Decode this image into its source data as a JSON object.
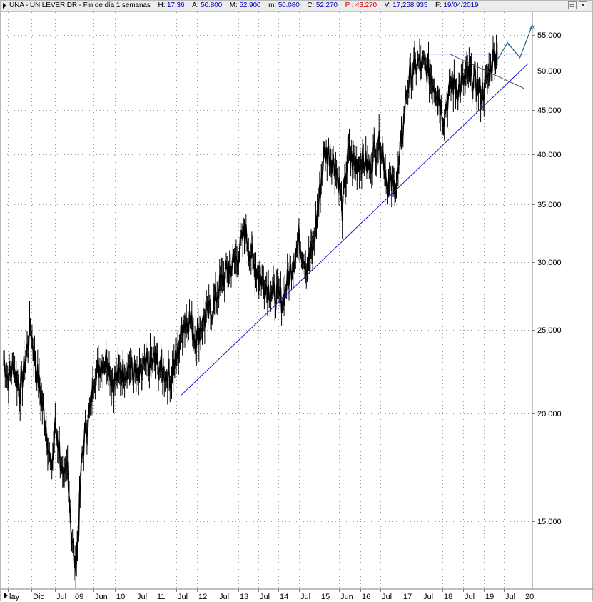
{
  "header": {
    "symbol": "UNA",
    "name": "UNILEVER DR",
    "period": "Fin de día 1 semanas",
    "hora_label": "H:",
    "hora": "17:36",
    "open_label": "A:",
    "open": "50.800",
    "high_label": "M:",
    "high": "52.900",
    "low_label": "m:",
    "low": "50.080",
    "close_label": "C:",
    "close": "52.270",
    "p_label": "P :",
    "p": "43.270",
    "vol_label": "V:",
    "vol": "17,258,935",
    "date_label": "F:",
    "date": "19/04/2019"
  },
  "window_buttons": {
    "restore": "▭",
    "close": "✕"
  },
  "colors": {
    "price": "#000000",
    "support": "#1a1acc",
    "resistance": "#1a1acc",
    "downtrend": "#444444",
    "projection": "#2d6b8a",
    "grid": "#9a9a9a",
    "label_blue": "#0000b4",
    "label_red": "#d20000"
  },
  "chart_data": {
    "type": "line",
    "y_scale": "log",
    "ylim": [
      12.5,
      58.5
    ],
    "y_ticks": [
      "15.000",
      "20.000",
      "25.000",
      "30.000",
      "35.000",
      "40.000",
      "45.000",
      "50.000",
      "55.000"
    ],
    "x_ticks": [
      "lay",
      "Dic",
      "Jul",
      "09",
      "Jun",
      "10",
      "Jul",
      "11",
      "Jul",
      "12",
      "Jul",
      "13",
      "Jul",
      "14",
      "Jul",
      "15",
      "Jun",
      "16",
      "Jul",
      "17",
      "Jul",
      "18",
      "Jul",
      "19",
      "Jul",
      "20"
    ],
    "series": [
      {
        "x": [
          2007.35,
          2007.45,
          2007.6,
          2007.75,
          2007.9,
          2008.0,
          2008.1,
          2008.25,
          2008.4,
          2008.5,
          2008.6,
          2008.7,
          2008.8,
          2008.9,
          2009.0,
          2009.08,
          2009.15,
          2009.25,
          2009.35,
          2009.45,
          2009.55,
          2009.7,
          2009.85,
          2010.0,
          2010.2,
          2010.4,
          2010.6,
          2010.8,
          2011.0,
          2011.2,
          2011.4,
          2011.55,
          2011.7,
          2011.85,
          2012.0,
          2012.2,
          2012.4,
          2012.6,
          2012.8,
          2013.0,
          2013.2,
          2013.4,
          2013.55,
          2013.7,
          2013.9,
          2014.1,
          2014.3,
          2014.5,
          2014.7,
          2014.85,
          2015.0,
          2015.1,
          2015.2,
          2015.35,
          2015.45,
          2015.55,
          2015.7,
          2015.85,
          2016.0,
          2016.2,
          2016.4,
          2016.5,
          2016.65,
          2016.8,
          2016.9,
          2017.0,
          2017.1,
          2017.2,
          2017.4,
          2017.6,
          2017.75,
          2017.85,
          2018.0,
          2018.1,
          2018.2,
          2018.35,
          2018.45,
          2018.6,
          2018.75,
          2018.9,
          2019.0,
          2019.1,
          2019.2,
          2019.3
        ],
        "y": [
          23.2,
          22.0,
          22.7,
          21.2,
          23.4,
          25.3,
          23.2,
          21.0,
          19.0,
          17.0,
          19.3,
          18.2,
          16.3,
          17.5,
          14.3,
          13.2,
          14.2,
          17.8,
          19.3,
          20.2,
          22.3,
          22.7,
          23.3,
          21.7,
          22.4,
          22.8,
          21.8,
          22.7,
          23.0,
          22.4,
          22.1,
          23.3,
          25.4,
          25.8,
          24.4,
          25.7,
          26.4,
          28.3,
          29.4,
          30.3,
          32.5,
          29.8,
          28.9,
          28.2,
          27.5,
          27.1,
          29.4,
          31.8,
          29.6,
          31.2,
          35.9,
          39.8,
          40.3,
          39.2,
          37.4,
          34.5,
          40.1,
          38.9,
          39.5,
          38.7,
          41.2,
          40.8,
          37.0,
          36.7,
          37.8,
          42.0,
          47.2,
          49.5,
          51.1,
          50.2,
          48.6,
          47.4,
          44.2,
          46.5,
          48.4,
          47.6,
          48.2,
          49.6,
          48.7,
          47.2,
          47.8,
          49.6,
          51.8,
          52.3
        ]
      }
    ],
    "annotations": {
      "support_line": {
        "from": [
          2011.65,
          21.0
        ],
        "to": [
          2020.05,
          51.0
        ]
      },
      "resistance_line": {
        "from": [
          2017.6,
          52.3
        ],
        "to": [
          2020.0,
          52.3
        ]
      },
      "downtrend_line": {
        "from": [
          2018.15,
          52.3
        ],
        "to": [
          2019.95,
          47.7
        ]
      },
      "projection_path": [
        [
          2019.3,
          51.5
        ],
        [
          2019.55,
          53.9
        ],
        [
          2019.85,
          51.8
        ],
        [
          2020.15,
          56.5
        ]
      ]
    }
  }
}
